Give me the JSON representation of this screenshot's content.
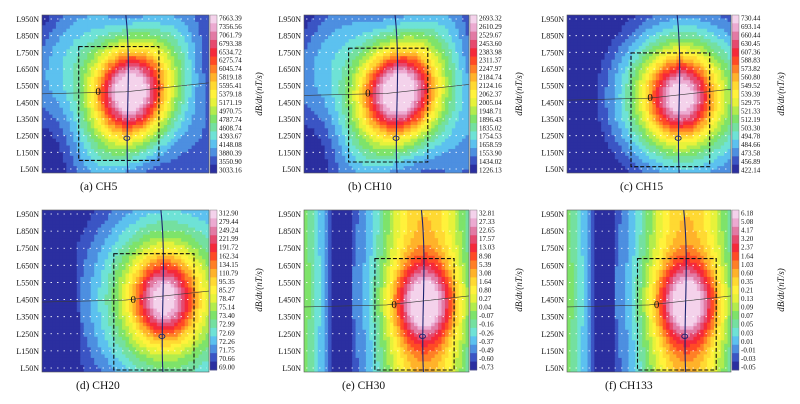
{
  "chart_data": [
    {
      "type": "heatmap",
      "caption": "(a)  CH5",
      "ylabels": [
        "L950N",
        "L850N",
        "L750N",
        "L650N",
        "L550N",
        "L450N",
        "L350N",
        "L250N",
        "L150N",
        "L50N"
      ],
      "colorbar": {
        "label": "dB/dt/(nT/s)",
        "ticks": [
          "7663.39",
          "7356.56",
          "7061.79",
          "6793.38",
          "6534.72",
          "6275.74",
          "6045.74",
          "5819.18",
          "5595.41",
          "5379.18",
          "5171.19",
          "4970.75",
          "4787.74",
          "4608.74",
          "4393.67",
          "4148.08",
          "3880.39",
          "3550.90",
          "3033.16"
        ]
      },
      "zero_label": "0",
      "peak": {
        "x": 0.52,
        "y": 0.48,
        "rx": 0.14,
        "ry": 0.18
      },
      "boxed": true,
      "pattern": "center"
    },
    {
      "type": "heatmap",
      "caption": "(b)  CH10",
      "ylabels": [
        "L950N",
        "L850N",
        "L750N",
        "L650N",
        "L550N",
        "L450N",
        "L350N",
        "L250N",
        "L150N",
        "L50N"
      ],
      "colorbar": {
        "label": "dB/dt/(nT/s)",
        "ticks": [
          "2693.32",
          "2610.29",
          "2529.67",
          "2453.60",
          "2383.98",
          "2311.37",
          "2247.97",
          "2184.74",
          "2124.16",
          "2062.37",
          "2005.04",
          "1948.71",
          "1896.43",
          "1835.02",
          "1754.53",
          "1658.59",
          "1553.90",
          "1434.02",
          "1226.13"
        ]
      },
      "zero_label": "0",
      "peak": {
        "x": 0.57,
        "y": 0.49,
        "rx": 0.15,
        "ry": 0.18
      },
      "boxed": true,
      "pattern": "center"
    },
    {
      "type": "heatmap",
      "caption": "(c)  CH15",
      "ylabels": [
        "L950N",
        "L850N",
        "L750N",
        "L650N",
        "L550N",
        "L450N",
        "L350N",
        "L250N",
        "L150N",
        "L50N"
      ],
      "colorbar": {
        "label": "dB/dt/(nT/s)",
        "ticks": [
          "730.44",
          "693.14",
          "660.44",
          "630.45",
          "607.36",
          "588.83",
          "573.82",
          "560.80",
          "549.52",
          "539.39",
          "529.75",
          "521.33",
          "512.19",
          "503.30",
          "494.78",
          "484.66",
          "473.58",
          "456.89",
          "422.14"
        ]
      },
      "zero_label": "0",
      "peak": {
        "x": 0.69,
        "y": 0.52,
        "rx": 0.14,
        "ry": 0.18
      },
      "boxed": true,
      "pattern": "right"
    },
    {
      "type": "heatmap",
      "caption": "(d)  CH20",
      "ylabels": [
        "L950N",
        "L850N",
        "L750N",
        "L650N",
        "L550N",
        "L450N",
        "L350N",
        "L250N",
        "L150N",
        "L50N"
      ],
      "colorbar": {
        "label": "dB/dt/(nT/s)",
        "ticks": [
          "312.90",
          "279.44",
          "249.24",
          "221.99",
          "191.72",
          "162.34",
          "134.15",
          "110.79",
          "95.35",
          "85.27",
          "78.47",
          "75.14",
          "73.40",
          "72.99",
          "72.69",
          "72.26",
          "71.75",
          "70.66",
          "69.00"
        ]
      },
      "zero_label": "0",
      "peak": {
        "x": 0.73,
        "y": 0.55,
        "rx": 0.13,
        "ry": 0.18
      },
      "boxed": true,
      "pattern": "right-low"
    },
    {
      "type": "heatmap",
      "caption": "(e)  CH30",
      "ylabels": [
        "L950N",
        "L850N",
        "L750N",
        "L650N",
        "L550N",
        "L450N",
        "L350N",
        "L250N",
        "L150N",
        "L50N"
      ],
      "colorbar": {
        "label": "dB/dt/(nT/s)",
        "ticks": [
          "32.81",
          "27.33",
          "22.65",
          "17.57",
          "13.03",
          "8.98",
          "5.39",
          "3.08",
          "1.64",
          "0.80",
          "0.27",
          "0.04",
          "-0.07",
          "-0.16",
          "-0.26",
          "-0.37",
          "-0.49",
          "-0.60",
          "-0.73"
        ]
      },
      "zero_label": "0",
      "peak": {
        "x": 0.73,
        "y": 0.58,
        "rx": 0.13,
        "ry": 0.17
      },
      "boxed": true,
      "pattern": "stripes"
    },
    {
      "type": "heatmap",
      "caption": "(f)  CH133",
      "ylabels": [
        "L950N",
        "L850N",
        "L750N",
        "L650N",
        "L550N",
        "L450N",
        "L350N",
        "L250N",
        "L150N",
        "L50N"
      ],
      "colorbar": {
        "label": "dB/dt/(nT/s)",
        "ticks": [
          "6.18",
          "5.08",
          "4.17",
          "3.20",
          "2.37",
          "1.64",
          "1.03",
          "0.60",
          "0.35",
          "0.21",
          "0.13",
          "0.09",
          "0.07",
          "0.05",
          "0.03",
          "0.01",
          "-0.01",
          "-0.03",
          "-0.05"
        ]
      },
      "zero_label": "0",
      "peak": {
        "x": 0.73,
        "y": 0.58,
        "rx": 0.13,
        "ry": 0.17
      },
      "boxed": true,
      "pattern": "stripes"
    }
  ]
}
